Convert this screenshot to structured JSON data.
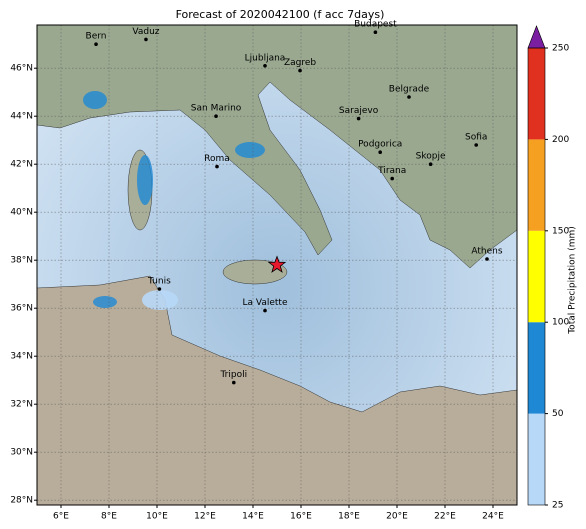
{
  "title": "Forecast of 2020042100 (f acc 7days)",
  "map": {
    "lonlim": [
      5,
      25
    ],
    "latlim": [
      27.8,
      47.8
    ],
    "lonticks": [
      {
        "value": 6,
        "label": "6°E"
      },
      {
        "value": 8,
        "label": "8°E"
      },
      {
        "value": 10,
        "label": "10°E"
      },
      {
        "value": 12,
        "label": "12°E"
      },
      {
        "value": 14,
        "label": "14°E"
      },
      {
        "value": 16,
        "label": "16°E"
      },
      {
        "value": 18,
        "label": "18°E"
      },
      {
        "value": 20,
        "label": "20°E"
      },
      {
        "value": 22,
        "label": "22°E"
      },
      {
        "value": 24,
        "label": "24°E"
      }
    ],
    "latticks": [
      {
        "value": 28,
        "label": "28°N"
      },
      {
        "value": 30,
        "label": "30°N"
      },
      {
        "value": 32,
        "label": "32°N"
      },
      {
        "value": 34,
        "label": "34°N"
      },
      {
        "value": 36,
        "label": "36°N"
      },
      {
        "value": 38,
        "label": "38°N"
      },
      {
        "value": 40,
        "label": "40°N"
      },
      {
        "value": 42,
        "label": "42°N"
      },
      {
        "value": 44,
        "label": "44°N"
      },
      {
        "value": 46,
        "label": "46°N"
      }
    ],
    "cities": [
      {
        "name": "Bern",
        "lon": 7.46,
        "lat": 47.0
      },
      {
        "name": "Vaduz",
        "lon": 9.54,
        "lat": 47.2
      },
      {
        "name": "Budapest",
        "lon": 19.1,
        "lat": 47.5
      },
      {
        "name": "Ljubljana",
        "lon": 14.5,
        "lat": 46.1
      },
      {
        "name": "Zagreb",
        "lon": 15.96,
        "lat": 45.9
      },
      {
        "name": "Belgrade",
        "lon": 20.5,
        "lat": 44.8
      },
      {
        "name": "San Marino",
        "lon": 12.46,
        "lat": 44.0
      },
      {
        "name": "Sarajevo",
        "lon": 18.4,
        "lat": 43.9
      },
      {
        "name": "Sofia",
        "lon": 23.3,
        "lat": 42.8
      },
      {
        "name": "Podgorica",
        "lon": 19.3,
        "lat": 42.5
      },
      {
        "name": "Roma",
        "lon": 12.5,
        "lat": 41.9
      },
      {
        "name": "Skopje",
        "lon": 21.4,
        "lat": 42.0
      },
      {
        "name": "Tirana",
        "lon": 19.8,
        "lat": 41.4
      },
      {
        "name": "Athens",
        "lon": 23.75,
        "lat": 38.05
      },
      {
        "name": "Tunis",
        "lon": 10.1,
        "lat": 36.8
      },
      {
        "name": "La Valette",
        "lon": 14.5,
        "lat": 35.9
      },
      {
        "name": "Tripoli",
        "lon": 13.2,
        "lat": 32.9
      }
    ],
    "star": {
      "lon": 15.0,
      "lat": 37.8,
      "color": "#e8192c"
    }
  },
  "colorbar": {
    "label": "Total Precipitation (mm)",
    "levels": [
      25,
      50,
      100,
      150,
      200,
      250
    ],
    "colors": [
      "#b8d8f8",
      "#1e88d4",
      "#ffff00",
      "#f5a020",
      "#e03020"
    ],
    "extend_color": "#7b1fa2"
  }
}
